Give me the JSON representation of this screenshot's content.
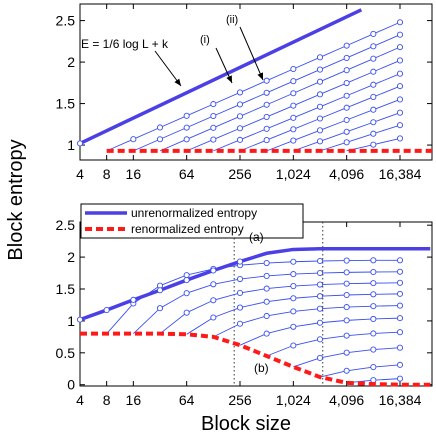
{
  "figure": {
    "ylabel": "Block entropy",
    "xlabel": "Block size"
  },
  "colors": {
    "unrenormalized": "#4b3fe6",
    "renormalized": "#ff1a1a",
    "thin": "#3a4ff0"
  },
  "chart_data": [
    {
      "type": "line",
      "panel": "top",
      "xscale": "log2",
      "x_ticks": [
        4,
        8,
        16,
        64,
        256,
        1024,
        4096,
        16384
      ],
      "x_tick_labels": [
        "4",
        "8",
        "16",
        "64",
        "256",
        "1,024",
        "4,096",
        "16,384"
      ],
      "y_ticks": [
        1,
        1.5,
        2,
        2.5
      ],
      "y_tick_labels": [
        "1",
        "1.5",
        "2",
        "2.5"
      ],
      "ylim": [
        0.82,
        2.7
      ],
      "annotations": {
        "formula": "E = 1/6 log L + k",
        "label_i": "(i)",
        "label_ii": "(ii)"
      },
      "unrenormalized": {
        "x_start": 4,
        "y_start": 1.02,
        "x_end": 6000,
        "y_end": 2.63
      },
      "renormalized_level": 0.93,
      "thin_series": [
        {
          "x_start": 8,
          "x_end": 16384,
          "y_start": 0.93,
          "y_end": 2.48
        },
        {
          "x_start": 16,
          "x_end": 16384,
          "y_start": 0.93,
          "y_end": 2.33
        },
        {
          "x_start": 32,
          "x_end": 16384,
          "y_start": 0.93,
          "y_end": 2.18
        },
        {
          "x_start": 64,
          "x_end": 16384,
          "y_start": 0.93,
          "y_end": 2.02
        },
        {
          "x_start": 128,
          "x_end": 16384,
          "y_start": 0.93,
          "y_end": 1.86
        },
        {
          "x_start": 256,
          "x_end": 16384,
          "y_start": 0.93,
          "y_end": 1.71
        },
        {
          "x_start": 512,
          "x_end": 16384,
          "y_start": 0.93,
          "y_end": 1.55
        },
        {
          "x_start": 1024,
          "x_end": 16384,
          "y_start": 0.93,
          "y_end": 1.39
        },
        {
          "x_start": 2048,
          "x_end": 16384,
          "y_start": 0.93,
          "y_end": 1.24
        },
        {
          "x_start": 4096,
          "x_end": 16384,
          "y_start": 0.93,
          "y_end": 1.08
        }
      ]
    },
    {
      "type": "line",
      "panel": "bottom",
      "xscale": "log2",
      "x_ticks": [
        4,
        8,
        16,
        64,
        256,
        1024,
        4096,
        16384
      ],
      "x_tick_labels": [
        "4",
        "8",
        "16",
        "64",
        "256",
        "1,024",
        "4,096",
        "16,384"
      ],
      "y_ticks": [
        0,
        0.5,
        1,
        1.5,
        2,
        2.5
      ],
      "y_tick_labels": [
        "0",
        "0.5",
        "1",
        "1.5",
        "2",
        "2.5"
      ],
      "ylim": [
        -0.02,
        2.55
      ],
      "vlines": [
        220,
        2200
      ],
      "legend": {
        "position": "top-left",
        "entries": [
          "unrenormalized entropy",
          "renormalized entropy"
        ]
      },
      "annotations": {
        "label_a": "(a)",
        "label_b": "(b)"
      },
      "unrenormalized": {
        "x": [
          4,
          8,
          16,
          32,
          64,
          128,
          256,
          512,
          1024,
          2048,
          4096,
          8192,
          16384,
          40000
        ],
        "y": [
          1.02,
          1.17,
          1.33,
          1.48,
          1.64,
          1.79,
          1.93,
          2.06,
          2.12,
          2.13,
          2.13,
          2.13,
          2.13,
          2.13
        ]
      },
      "renormalized": {
        "x": [
          4,
          8,
          16,
          32,
          64,
          128,
          256,
          512,
          1024,
          2048,
          4096,
          8192,
          16384,
          40000
        ],
        "y": [
          0.8,
          0.8,
          0.8,
          0.8,
          0.79,
          0.75,
          0.62,
          0.45,
          0.28,
          0.12,
          0.03,
          0.01,
          0.0,
          0.0
        ]
      },
      "thin_x": [
        8,
        16,
        32,
        64,
        128,
        256,
        512,
        1024,
        2048,
        4096,
        8192,
        16384
      ],
      "thin_series": [
        {
          "x_start": 8,
          "y_start": 0.8,
          "y_plateau": 1.95
        },
        {
          "x_start": 16,
          "y_start": 0.8,
          "y_plateau": 1.77
        },
        {
          "x_start": 32,
          "y_start": 0.8,
          "y_plateau": 1.6
        },
        {
          "x_start": 64,
          "y_start": 0.79,
          "y_plateau": 1.43
        },
        {
          "x_start": 128,
          "y_start": 0.75,
          "y_plateau": 1.25
        },
        {
          "x_start": 256,
          "y_start": 0.62,
          "y_plateau": 1.06
        },
        {
          "x_start": 512,
          "y_start": 0.45,
          "y_plateau": 0.85
        },
        {
          "x_start": 1024,
          "y_start": 0.28,
          "y_plateau": 0.62
        },
        {
          "x_start": 2048,
          "y_start": 0.12,
          "y_plateau": 0.36
        },
        {
          "x_start": 4096,
          "y_start": 0.03,
          "y_plateau": 0.13
        }
      ]
    }
  ]
}
